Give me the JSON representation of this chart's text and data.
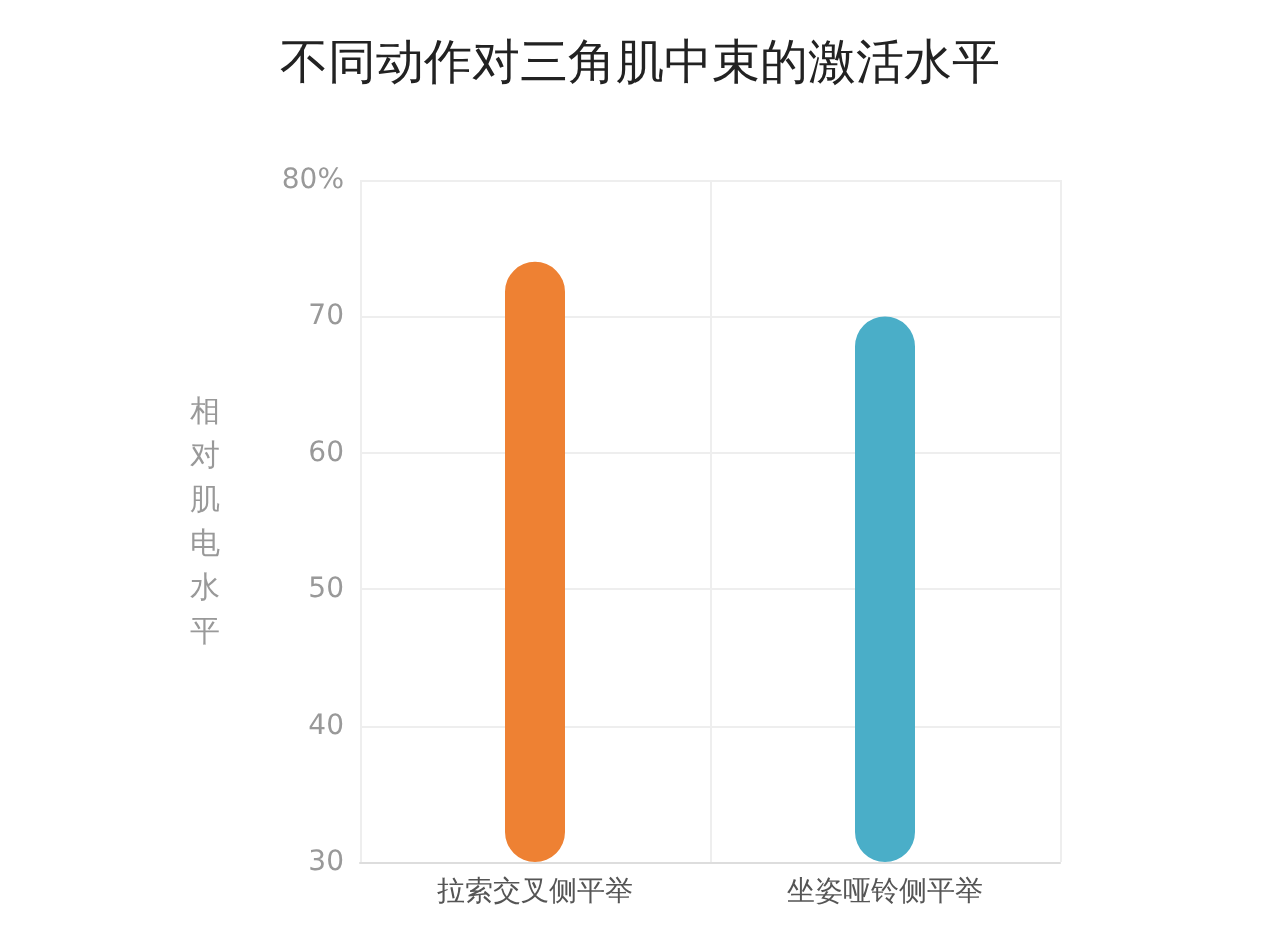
{
  "chart_data": {
    "type": "bar",
    "title": "不同动作对三角肌中束的激活水平",
    "ylabel": "相对肌电水平",
    "categories": [
      "拉索交叉侧平举",
      "坐姿哑铃侧平举"
    ],
    "values": [
      74,
      70
    ],
    "colors": [
      "#ee8133",
      "#4aaec8"
    ],
    "ylim": [
      30,
      80
    ],
    "yticks": [
      30,
      40,
      50,
      60,
      70,
      {
        "value": 80,
        "label": "80%"
      }
    ],
    "grid": true
  }
}
